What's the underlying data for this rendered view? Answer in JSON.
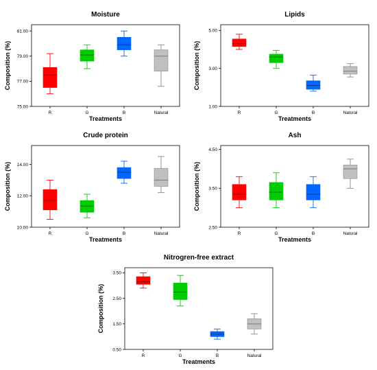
{
  "colors": {
    "R": "#ff0000",
    "G": "#00cc00",
    "B": "#0066ff",
    "Natural": "#c0c0c0",
    "axis": "#000000"
  },
  "chart_data": [
    {
      "type": "box",
      "title": "Moisture",
      "xlabel": "Treatments",
      "ylabel": "Composition (%)",
      "ylim": [
        75.0,
        81.5
      ],
      "yticks": [
        75.0,
        77.0,
        79.0,
        81.0
      ],
      "ytick_labels": [
        "75.00",
        "77.00",
        "79.00",
        "81.00"
      ],
      "categories": [
        "R",
        "G",
        "B",
        "Natural"
      ],
      "boxes": [
        {
          "name": "R",
          "whisker_low": 76.0,
          "q1": 76.5,
          "median": 77.5,
          "q3": 78.1,
          "whisker_high": 79.2
        },
        {
          "name": "G",
          "whisker_low": 78.0,
          "q1": 78.6,
          "median": 79.1,
          "q3": 79.5,
          "whisker_high": 79.9
        },
        {
          "name": "B",
          "whisker_low": 79.0,
          "q1": 79.5,
          "median": 79.9,
          "q3": 80.5,
          "whisker_high": 81.0
        },
        {
          "name": "Natural",
          "whisker_low": 76.6,
          "q1": 77.8,
          "median": 79.0,
          "q3": 79.5,
          "whisker_high": 79.9
        }
      ]
    },
    {
      "type": "box",
      "title": "Lipids",
      "xlabel": "Treatments",
      "ylabel": "Composition (%)",
      "ylim": [
        1.0,
        5.3
      ],
      "yticks": [
        1.0,
        3.0,
        5.0
      ],
      "ytick_labels": [
        "1.00",
        "3.00",
        "5.00"
      ],
      "categories": [
        "R",
        "G",
        "B",
        "Natural"
      ],
      "boxes": [
        {
          "name": "R",
          "whisker_low": 4.0,
          "q1": 4.15,
          "median": 4.3,
          "q3": 4.55,
          "whisker_high": 4.8
        },
        {
          "name": "G",
          "whisker_low": 3.0,
          "q1": 3.3,
          "median": 3.6,
          "q3": 3.75,
          "whisker_high": 3.95
        },
        {
          "name": "B",
          "whisker_low": 1.8,
          "q1": 1.9,
          "median": 2.1,
          "q3": 2.35,
          "whisker_high": 2.65
        },
        {
          "name": "Natural",
          "whisker_low": 2.55,
          "q1": 2.7,
          "median": 2.85,
          "q3": 3.1,
          "whisker_high": 3.25
        }
      ]
    },
    {
      "type": "box",
      "title": "Crude protein",
      "xlabel": "Treatments",
      "ylabel": "Composition (%)",
      "ylim": [
        10.0,
        15.2
      ],
      "yticks": [
        10.0,
        12.0,
        14.0
      ],
      "ytick_labels": [
        "10.00",
        "12.00",
        "14.00"
      ],
      "categories": [
        "R",
        "G",
        "B",
        "Natural"
      ],
      "boxes": [
        {
          "name": "R",
          "whisker_low": 10.5,
          "q1": 11.1,
          "median": 11.7,
          "q3": 12.4,
          "whisker_high": 13.0
        },
        {
          "name": "G",
          "whisker_low": 10.6,
          "q1": 10.95,
          "median": 11.35,
          "q3": 11.7,
          "whisker_high": 12.1
        },
        {
          "name": "B",
          "whisker_low": 12.8,
          "q1": 13.1,
          "median": 13.5,
          "q3": 13.8,
          "whisker_high": 14.2
        },
        {
          "name": "Natural",
          "whisker_low": 12.2,
          "q1": 12.6,
          "median": 13.0,
          "q3": 13.75,
          "whisker_high": 14.5
        }
      ]
    },
    {
      "type": "box",
      "title": "Ash",
      "xlabel": "Treatments",
      "ylabel": "Composition (%)",
      "ylim": [
        2.5,
        4.6
      ],
      "yticks": [
        2.5,
        3.5,
        4.5
      ],
      "ytick_labels": [
        "2.50",
        "3.50",
        "4.50"
      ],
      "categories": [
        "R",
        "G",
        "B",
        "Natural"
      ],
      "boxes": [
        {
          "name": "R",
          "whisker_low": 3.0,
          "q1": 3.2,
          "median": 3.35,
          "q3": 3.6,
          "whisker_high": 3.8
        },
        {
          "name": "G",
          "whisker_low": 3.0,
          "q1": 3.2,
          "median": 3.4,
          "q3": 3.65,
          "whisker_high": 3.9
        },
        {
          "name": "B",
          "whisker_low": 3.0,
          "q1": 3.2,
          "median": 3.35,
          "q3": 3.6,
          "whisker_high": 3.8
        },
        {
          "name": "Natural",
          "whisker_low": 3.5,
          "q1": 3.75,
          "median": 4.0,
          "q3": 4.1,
          "whisker_high": 4.25
        }
      ]
    },
    {
      "type": "box",
      "title": "Nitrogren-free extract",
      "xlabel": "Treatments",
      "ylabel": "Composition (%)",
      "ylim": [
        0.5,
        3.7
      ],
      "yticks": [
        0.5,
        1.5,
        2.5,
        3.5
      ],
      "ytick_labels": [
        "0.50",
        "1.50",
        "2.50",
        "3.50"
      ],
      "categories": [
        "R",
        "G",
        "B",
        "Natural"
      ],
      "boxes": [
        {
          "name": "R",
          "whisker_low": 2.9,
          "q1": 3.05,
          "median": 3.15,
          "q3": 3.35,
          "whisker_high": 3.5
        },
        {
          "name": "G",
          "whisker_low": 2.2,
          "q1": 2.45,
          "median": 2.75,
          "q3": 3.1,
          "whisker_high": 3.4
        },
        {
          "name": "B",
          "whisker_low": 0.9,
          "q1": 1.0,
          "median": 1.1,
          "q3": 1.2,
          "whisker_high": 1.3
        },
        {
          "name": "Natural",
          "whisker_low": 1.1,
          "q1": 1.3,
          "median": 1.5,
          "q3": 1.7,
          "whisker_high": 1.9
        }
      ]
    }
  ]
}
